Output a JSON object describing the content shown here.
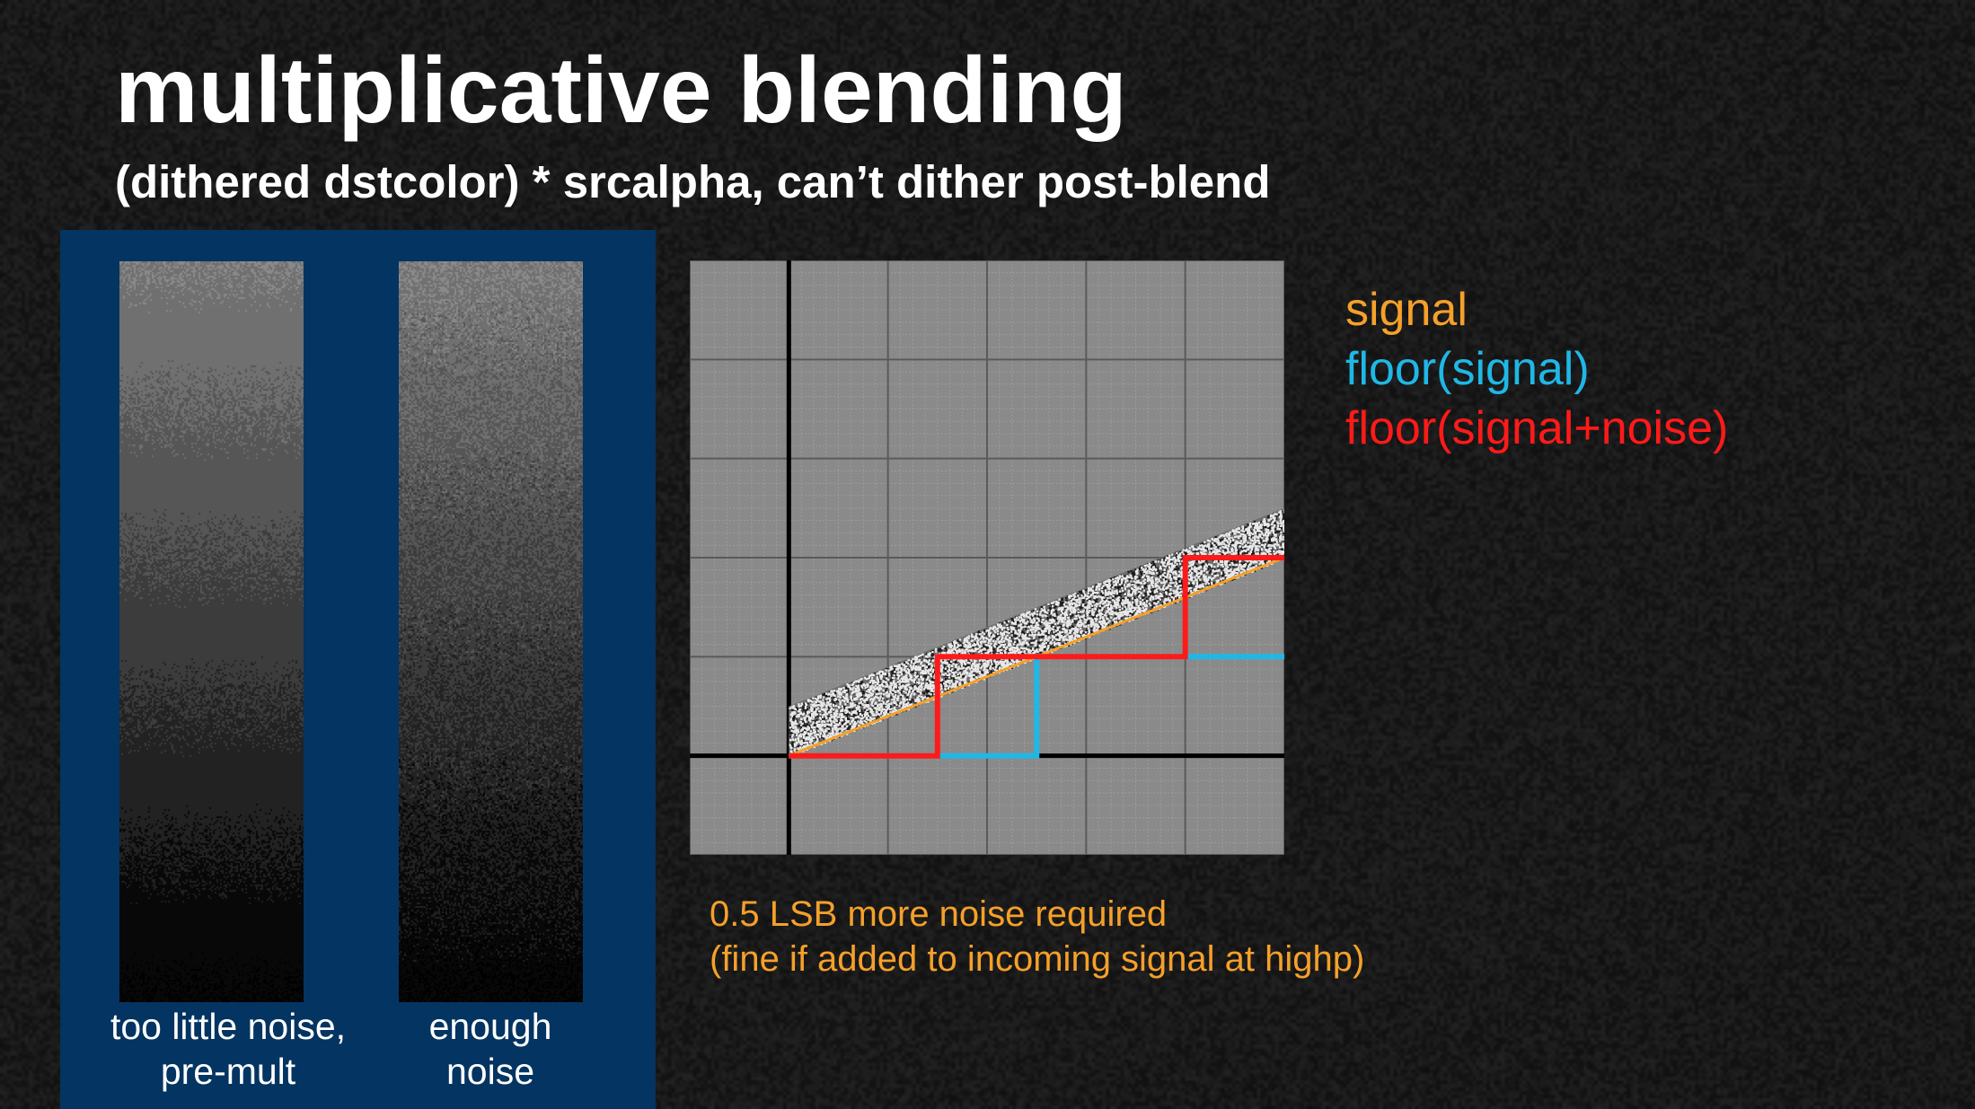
{
  "slide": {
    "title": "multiplicative blending",
    "subtitle": "(dithered dstcolor) * srcalpha, can’t dither post-blend"
  },
  "comparison": {
    "left_caption": [
      "too little noise,",
      "pre-mult"
    ],
    "right_caption": [
      "enough",
      "noise"
    ]
  },
  "legend": [
    {
      "label": "signal",
      "color": "#f5a02a"
    },
    {
      "label": "floor(signal)",
      "color": "#1fb8e6"
    },
    {
      "label": "floor(signal+noise)",
      "color": "#ff1a1a"
    }
  ],
  "note": {
    "lines": [
      "0.5 LSB more noise required",
      "(fine if added to incoming signal at highp)"
    ],
    "color": "#f5a02a"
  },
  "chart_data": {
    "type": "line",
    "title": "",
    "xlabel": "",
    "ylabel": "",
    "xlim": [
      -1,
      5
    ],
    "ylim": [
      -1,
      5
    ],
    "grid": true,
    "series": [
      {
        "name": "signal",
        "color": "#f5a02a",
        "x": [
          0,
          5
        ],
        "y": [
          0,
          2
        ]
      },
      {
        "name": "floor(signal)",
        "color": "#1fb8e6",
        "x": [
          0,
          2.5,
          2.5,
          5
        ],
        "y": [
          0,
          0,
          1,
          1
        ]
      },
      {
        "name": "floor(signal+noise)",
        "color": "#ff1a1a",
        "x": [
          0,
          1.5,
          1.5,
          4,
          4,
          5
        ],
        "y": [
          0,
          0,
          1,
          1,
          2,
          2
        ]
      }
    ],
    "noise_band": {
      "x": [
        0,
        5
      ],
      "y_low": [
        0,
        2
      ],
      "y_high": [
        0.5,
        2.5
      ]
    }
  }
}
